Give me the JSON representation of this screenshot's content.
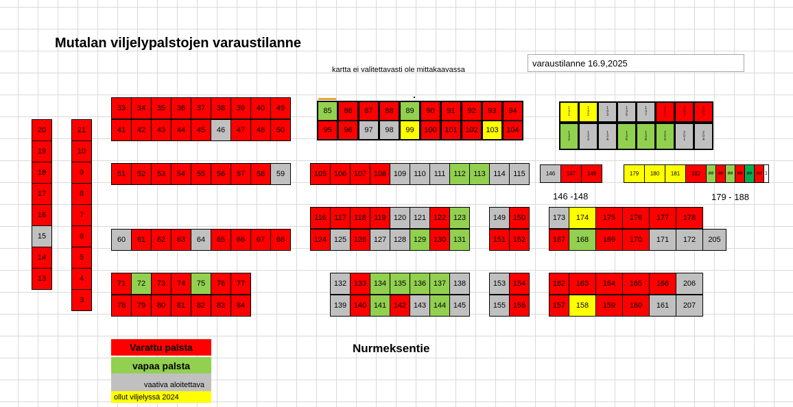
{
  "title": "Mutalan viljelypalstojen varaustilanne",
  "note": "kartta ei valitettavasti ole mittakaavassa",
  "status": "varaustilanne 16.9,2025",
  "road": "Nurmeksentie",
  "label_146": "146 -148",
  "label_179": "179 - 188",
  "legend": {
    "reserved": "Varattu palsta",
    "free": "vapaa palsta",
    "demanding": "vaativa aloitettava",
    "cultivated": "ollut viljelyssä 2024"
  },
  "colors": {
    "reserved": "#ff0000",
    "free": "#92d050",
    "demanding": "#c0c0c0",
    "cultivated": "#ffff00",
    "free_dark": "#00b050"
  },
  "groups": [
    {
      "id": "col-13-20",
      "dir": "col",
      "cells": [
        [
          "20",
          "r"
        ],
        [
          "19",
          "r"
        ],
        [
          "18",
          "r"
        ],
        [
          "17",
          "r"
        ],
        [
          "16",
          "r"
        ],
        [
          "15",
          "s"
        ],
        [
          "14",
          "r"
        ],
        [
          "13",
          "r"
        ]
      ]
    },
    {
      "id": "col-3-21",
      "dir": "col",
      "cells": [
        [
          "21",
          "r"
        ],
        [
          "10",
          "r"
        ],
        [
          "9",
          "r"
        ],
        [
          "8",
          "r"
        ],
        [
          "7",
          "r"
        ],
        [
          "6",
          "r"
        ],
        [
          "5",
          "r"
        ],
        [
          "4",
          "r"
        ],
        [
          "3",
          "r"
        ]
      ]
    },
    {
      "id": "row-33-49",
      "dir": "row",
      "cells": [
        [
          "33",
          "r"
        ],
        [
          "34",
          "r"
        ],
        [
          "35",
          "r"
        ],
        [
          "36",
          "r"
        ],
        [
          "37",
          "r"
        ],
        [
          "38",
          "r"
        ],
        [
          "39",
          "r"
        ],
        [
          "40",
          "r"
        ],
        [
          "49",
          "r"
        ]
      ]
    },
    {
      "id": "row-41-50",
      "dir": "row",
      "cells": [
        [
          "41",
          "r"
        ],
        [
          "42",
          "r"
        ],
        [
          "43",
          "r"
        ],
        [
          "44",
          "r"
        ],
        [
          "45",
          "r"
        ],
        [
          "46",
          "s"
        ],
        [
          "47",
          "r"
        ],
        [
          "48",
          "r"
        ],
        [
          "50",
          "r"
        ]
      ]
    },
    {
      "id": "row-51-59",
      "dir": "row",
      "cells": [
        [
          "51",
          "r"
        ],
        [
          "52",
          "r"
        ],
        [
          "53",
          "r"
        ],
        [
          "54",
          "r"
        ],
        [
          "55",
          "r"
        ],
        [
          "56",
          "r"
        ],
        [
          "57",
          "r"
        ],
        [
          "58",
          "r"
        ],
        [
          "59",
          "s"
        ]
      ]
    },
    {
      "id": "row-60-68",
      "dir": "row",
      "cells": [
        [
          "60",
          "s"
        ],
        [
          "61",
          "r"
        ],
        [
          "62",
          "r"
        ],
        [
          "63",
          "r"
        ],
        [
          "64",
          "s"
        ],
        [
          "65",
          "r"
        ],
        [
          "66",
          "r"
        ],
        [
          "67",
          "r"
        ],
        [
          "68",
          "r"
        ]
      ]
    },
    {
      "id": "row-71-77",
      "dir": "row",
      "cells": [
        [
          "71",
          "r"
        ],
        [
          "72",
          "g"
        ],
        [
          "73",
          "r"
        ],
        [
          "74",
          "r"
        ],
        [
          "75",
          "g"
        ],
        [
          "76",
          "r"
        ],
        [
          "77",
          "r"
        ]
      ]
    },
    {
      "id": "row-78-84",
      "dir": "row",
      "cells": [
        [
          "78",
          "r"
        ],
        [
          "79",
          "r"
        ],
        [
          "80",
          "r"
        ],
        [
          "81",
          "r"
        ],
        [
          "82",
          "r"
        ],
        [
          "83",
          "r"
        ],
        [
          "84",
          "r"
        ]
      ]
    },
    {
      "id": "row-85-94",
      "dir": "row",
      "cells": [
        [
          "85",
          "g"
        ],
        [
          "86",
          "r"
        ],
        [
          "87",
          "r"
        ],
        [
          "88",
          "r"
        ],
        [
          "89",
          "g"
        ],
        [
          "90",
          "r"
        ],
        [
          "91",
          "r"
        ],
        [
          "92",
          "r"
        ],
        [
          "93",
          "r"
        ],
        [
          "94",
          "r"
        ]
      ]
    },
    {
      "id": "row-95-104",
      "dir": "row",
      "cells": [
        [
          "95",
          "r"
        ],
        [
          "96",
          "r"
        ],
        [
          "97",
          "s"
        ],
        [
          "98",
          "s"
        ],
        [
          "99",
          "y"
        ],
        [
          "100",
          "r"
        ],
        [
          "101",
          "r"
        ],
        [
          "102",
          "r"
        ],
        [
          "103",
          "y"
        ],
        [
          "104",
          "r"
        ]
      ]
    },
    {
      "id": "row-105-115",
      "dir": "row",
      "cells": [
        [
          "105",
          "r"
        ],
        [
          "106",
          "r"
        ],
        [
          "107",
          "r"
        ],
        [
          "108",
          "r"
        ],
        [
          "109",
          "s"
        ],
        [
          "110",
          "s"
        ],
        [
          "111",
          "s"
        ],
        [
          "112",
          "g"
        ],
        [
          "113",
          "g"
        ],
        [
          "114",
          "s"
        ],
        [
          "115",
          "s"
        ]
      ]
    },
    {
      "id": "row-116-123",
      "dir": "row",
      "cells": [
        [
          "116",
          "r"
        ],
        [
          "117",
          "r"
        ],
        [
          "118",
          "r"
        ],
        [
          "119",
          "r"
        ],
        [
          "120",
          "s"
        ],
        [
          "121",
          "s"
        ],
        [
          "122",
          "r"
        ],
        [
          "123",
          "g"
        ]
      ]
    },
    {
      "id": "row-124-131",
      "dir": "row",
      "cells": [
        [
          "124",
          "r"
        ],
        [
          "125",
          "s"
        ],
        [
          "126",
          "r"
        ],
        [
          "127",
          "s"
        ],
        [
          "128",
          "s"
        ],
        [
          "129",
          "g"
        ],
        [
          "130",
          "r"
        ],
        [
          "131",
          "g"
        ]
      ]
    },
    {
      "id": "row-132-138",
      "dir": "row",
      "cells": [
        [
          "132",
          "s"
        ],
        [
          "133",
          "r"
        ],
        [
          "134",
          "g"
        ],
        [
          "135",
          "g"
        ],
        [
          "136",
          "g"
        ],
        [
          "137",
          "g"
        ],
        [
          "138",
          "s"
        ]
      ]
    },
    {
      "id": "row-139-145",
      "dir": "row",
      "cells": [
        [
          "139",
          "s"
        ],
        [
          "140",
          "r"
        ],
        [
          "141",
          "g"
        ],
        [
          "142",
          "r"
        ],
        [
          "143",
          "s"
        ],
        [
          "144",
          "g"
        ],
        [
          "145",
          "s"
        ]
      ]
    },
    {
      "id": "row-149-150",
      "dir": "row",
      "cells": [
        [
          "149",
          "s"
        ],
        [
          "150",
          "r"
        ]
      ]
    },
    {
      "id": "row-151-152",
      "dir": "row",
      "cells": [
        [
          "151",
          "r"
        ],
        [
          "152",
          "r"
        ]
      ]
    },
    {
      "id": "row-153-154",
      "dir": "row",
      "cells": [
        [
          "153",
          "s"
        ],
        [
          "154",
          "r"
        ]
      ]
    },
    {
      "id": "row-155-156",
      "dir": "row",
      "cells": [
        [
          "155",
          "s"
        ],
        [
          "156",
          "r"
        ]
      ]
    },
    {
      "id": "row-173-178",
      "dir": "row",
      "cells": [
        [
          "173",
          "s"
        ],
        [
          "174",
          "y"
        ],
        [
          "175",
          "r"
        ],
        [
          "176",
          "r"
        ],
        [
          "177",
          "r"
        ],
        [
          "178",
          "r"
        ]
      ]
    },
    {
      "id": "row-167-205",
      "dir": "row",
      "cells": [
        [
          "167",
          "r"
        ],
        [
          "168",
          "g"
        ],
        [
          "169",
          "r"
        ],
        [
          "170",
          "r"
        ],
        [
          "171",
          "s"
        ],
        [
          "172",
          "s"
        ],
        [
          "205",
          "s"
        ]
      ]
    },
    {
      "id": "row-162-206",
      "dir": "row",
      "cells": [
        [
          "162",
          "r"
        ],
        [
          "163",
          "r"
        ],
        [
          "164",
          "r"
        ],
        [
          "165",
          "r"
        ],
        [
          "166",
          "r"
        ],
        [
          "206",
          "s"
        ]
      ]
    },
    {
      "id": "row-157-207",
      "dir": "row",
      "cells": [
        [
          "157",
          "r"
        ],
        [
          "158",
          "y"
        ],
        [
          "159",
          "r"
        ],
        [
          "160",
          "r"
        ],
        [
          "161",
          "s"
        ],
        [
          "207",
          "s"
        ]
      ]
    },
    {
      "id": "row-146-148",
      "dir": "row",
      "cells": [
        [
          "146",
          "s"
        ],
        [
          "147",
          "r"
        ],
        [
          "148",
          "r"
        ]
      ]
    },
    {
      "id": "row-179-188",
      "dir": "row",
      "cells": [
        [
          "179",
          "y"
        ],
        [
          "180",
          "y"
        ],
        [
          "181",
          "y"
        ],
        [
          "182",
          "r"
        ],
        [
          "##",
          "g"
        ],
        [
          "##",
          "r"
        ],
        [
          "##",
          "g"
        ],
        [
          "##",
          "r"
        ],
        [
          "##",
          "dg"
        ],
        [
          "##",
          "r"
        ],
        [
          "1",
          "w"
        ]
      ]
    },
    {
      "id": "tiny-top",
      "dir": "row",
      "cells": [
        [
          "1 3 1",
          "y"
        ],
        [
          "1 3 2",
          "y"
        ],
        [
          "1 3 3",
          "s"
        ],
        [
          "1 3 5",
          "s"
        ],
        [
          "1 3 7",
          "s"
        ],
        [
          "2 0 1",
          "r"
        ],
        [
          "2 0 3",
          "r"
        ],
        [
          "2 0 3",
          "r"
        ]
      ]
    },
    {
      "id": "tiny-bottom",
      "dir": "row",
      "cells": [
        [
          "1 3 2",
          "g"
        ],
        [
          "1 3 3",
          "s"
        ],
        [
          "1 3 4",
          "s"
        ],
        [
          "1 3 6",
          "g"
        ],
        [
          "1 3 8",
          "g"
        ],
        [
          "2 0 0",
          "g"
        ],
        [
          "2 0 1",
          "s"
        ],
        [
          "2 0 4",
          "s"
        ]
      ]
    }
  ]
}
